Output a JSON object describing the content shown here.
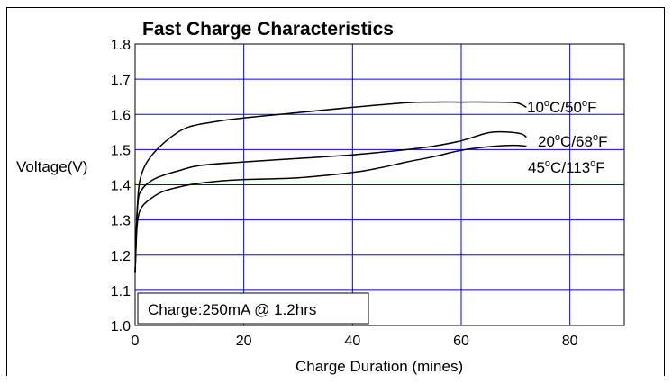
{
  "chart_data": {
    "type": "line",
    "title": "Fast Charge Characteristics",
    "xlabel": "Charge Duration (mines)",
    "ylabel": "Voltage(V)",
    "xlim": [
      0,
      90
    ],
    "ylim": [
      1.0,
      1.8
    ],
    "x_ticks": [
      "0",
      "20",
      "40",
      "60",
      "80"
    ],
    "y_ticks": [
      "1.0",
      "1.1",
      "1.2",
      "1.3",
      "1.4",
      "1.5",
      "1.6",
      "1.7",
      "1.8"
    ],
    "grid": true,
    "grid_color": "#0000ff",
    "annotation": "Charge:250mA @ 1.2hrs",
    "series": [
      {
        "name": "10°C/50°F",
        "label_parts": [
          "10",
          "o",
          "C/50",
          "o",
          "F"
        ],
        "x": [
          0,
          0.3,
          0.6,
          1.0,
          2,
          4,
          7,
          10,
          15,
          20,
          30,
          40,
          50,
          55,
          60,
          65,
          70,
          72
        ],
        "y": [
          1.15,
          1.3,
          1.38,
          1.42,
          1.46,
          1.5,
          1.54,
          1.565,
          1.58,
          1.59,
          1.605,
          1.62,
          1.633,
          1.635,
          1.635,
          1.635,
          1.633,
          1.62
        ]
      },
      {
        "name": "20°C/68°F",
        "label_parts": [
          "20",
          "o",
          "C/68",
          "o",
          "F"
        ],
        "x": [
          0,
          0.3,
          0.6,
          1.0,
          2,
          4,
          8,
          12,
          20,
          30,
          40,
          50,
          55,
          60,
          65,
          68,
          71,
          72
        ],
        "y": [
          1.15,
          1.3,
          1.36,
          1.38,
          1.4,
          1.42,
          1.44,
          1.455,
          1.465,
          1.475,
          1.485,
          1.5,
          1.51,
          1.525,
          1.548,
          1.55,
          1.545,
          1.535
        ]
      },
      {
        "name": "45°C/113°F",
        "label_parts": [
          "45",
          "o",
          "C/113",
          "o",
          "F"
        ],
        "x": [
          0,
          0.3,
          0.6,
          1.0,
          2,
          5,
          10,
          15,
          20,
          30,
          40,
          45,
          50,
          55,
          60,
          65,
          69,
          72
        ],
        "y": [
          1.15,
          1.27,
          1.31,
          1.33,
          1.35,
          1.38,
          1.4,
          1.41,
          1.415,
          1.42,
          1.435,
          1.448,
          1.465,
          1.48,
          1.498,
          1.508,
          1.512,
          1.51
        ]
      }
    ]
  }
}
